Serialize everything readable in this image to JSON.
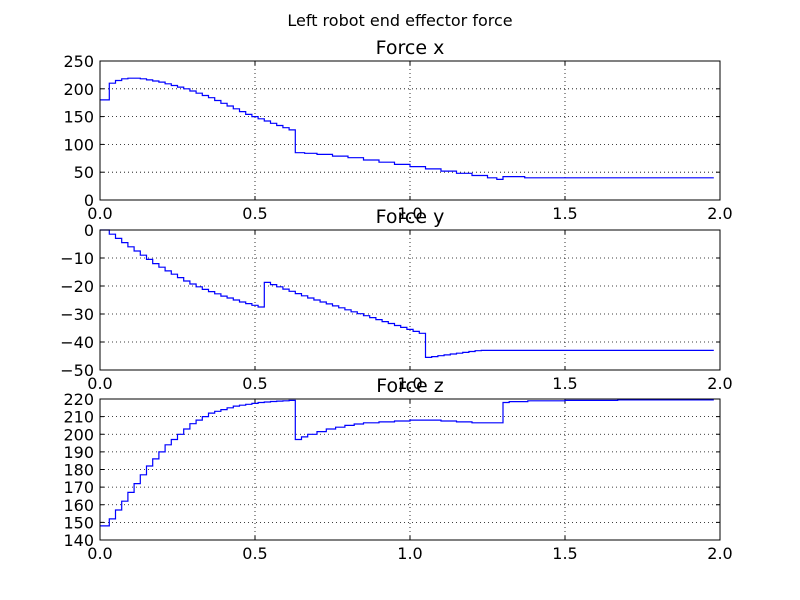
{
  "figure": {
    "suptitle": "Left robot  end effector force"
  },
  "chart_data": [
    {
      "type": "line",
      "title": "Force x",
      "xlabel": "",
      "ylabel": "",
      "xlim": [
        0.0,
        2.0
      ],
      "ylim": [
        0,
        250
      ],
      "xticks": [
        "0.0",
        "0.5",
        "1.0",
        "1.5",
        "2.0"
      ],
      "yticks": [
        "0",
        "50",
        "100",
        "150",
        "200",
        "250"
      ],
      "grid": true,
      "color": "#0000ff",
      "series": [
        {
          "x": [
            0,
            0.03,
            0.05,
            0.07,
            0.09,
            0.11,
            0.13,
            0.15,
            0.17,
            0.19,
            0.21,
            0.23,
            0.25,
            0.27,
            0.29,
            0.31,
            0.33,
            0.35,
            0.37,
            0.39,
            0.41,
            0.43,
            0.45,
            0.47,
            0.49,
            0.51,
            0.53,
            0.55,
            0.57,
            0.59,
            0.61,
            0.63,
            0.66,
            0.7,
            0.75,
            0.8,
            0.85,
            0.9,
            0.95,
            1.0,
            1.05,
            1.1,
            1.15,
            1.2,
            1.25,
            1.28,
            1.3,
            1.37,
            1.45,
            1.6,
            1.8,
            1.98
          ],
          "y": [
            180,
            210,
            215,
            218,
            219,
            219,
            218,
            216,
            214,
            212,
            209,
            206,
            203,
            200,
            196,
            192,
            188,
            184,
            179,
            174,
            169,
            164,
            159,
            154,
            150,
            146,
            142,
            138,
            134,
            130,
            126,
            85,
            84,
            82,
            79,
            76,
            72,
            68,
            64,
            60,
            56,
            52,
            48,
            44,
            40,
            37,
            42,
            40,
            40,
            40,
            40,
            40
          ]
        }
      ]
    },
    {
      "type": "line",
      "title": "Force y",
      "xlabel": "",
      "ylabel": "",
      "xlim": [
        0.0,
        2.0
      ],
      "ylim": [
        -50,
        0
      ],
      "xticks": [
        "0.0",
        "0.5",
        "1.0",
        "1.5",
        "2.0"
      ],
      "yticks": [
        "−50",
        "−40",
        "−30",
        "−20",
        "−10",
        "0"
      ],
      "grid": true,
      "color": "#0000ff",
      "series": [
        {
          "x": [
            0,
            0.03,
            0.05,
            0.07,
            0.09,
            0.11,
            0.13,
            0.15,
            0.17,
            0.19,
            0.21,
            0.23,
            0.25,
            0.27,
            0.29,
            0.31,
            0.33,
            0.35,
            0.37,
            0.39,
            0.41,
            0.43,
            0.45,
            0.47,
            0.49,
            0.51,
            0.53,
            0.55,
            0.57,
            0.59,
            0.61,
            0.63,
            0.65,
            0.67,
            0.69,
            0.71,
            0.73,
            0.75,
            0.77,
            0.79,
            0.81,
            0.83,
            0.85,
            0.87,
            0.89,
            0.91,
            0.93,
            0.95,
            0.97,
            0.99,
            1.01,
            1.03,
            1.05,
            1.07,
            1.09,
            1.11,
            1.13,
            1.15,
            1.17,
            1.19,
            1.21,
            1.23,
            1.25,
            1.27,
            1.29,
            1.31,
            1.35,
            1.4,
            1.5,
            1.67,
            1.98
          ],
          "y": [
            0,
            -1.5,
            -3,
            -4.5,
            -6,
            -7.5,
            -9,
            -10.5,
            -12,
            -13.3,
            -14.6,
            -15.8,
            -17,
            -18.2,
            -19.3,
            -20.3,
            -21.2,
            -22,
            -22.8,
            -23.6,
            -24.3,
            -25,
            -25.7,
            -26.3,
            -26.9,
            -27.5,
            -18.7,
            -19.5,
            -20.3,
            -21.1,
            -21.9,
            -22.7,
            -23.5,
            -24.3,
            -25,
            -25.7,
            -26.4,
            -27.1,
            -27.8,
            -28.5,
            -29.2,
            -29.9,
            -30.6,
            -31.3,
            -32,
            -32.7,
            -33.4,
            -34.1,
            -34.8,
            -35.5,
            -36.2,
            -36.9,
            -45.5,
            -45.2,
            -44.9,
            -44.6,
            -44.3,
            -44,
            -43.7,
            -43.4,
            -43.1,
            -43,
            -43,
            -43,
            -43,
            -43,
            -43,
            -43,
            -43,
            -43,
            -43
          ],
          "note": ""
        }
      ]
    },
    {
      "type": "line",
      "title": "Force z",
      "xlabel": "",
      "ylabel": "",
      "xlim": [
        0.0,
        2.0
      ],
      "ylim": [
        140,
        220
      ],
      "xticks": [
        "0.0",
        "0.5",
        "1.0",
        "1.5",
        "2.0"
      ],
      "yticks": [
        "140",
        "150",
        "160",
        "170",
        "180",
        "190",
        "200",
        "210",
        "220"
      ],
      "grid": true,
      "color": "#0000ff",
      "series": [
        {
          "x": [
            0,
            0.03,
            0.05,
            0.07,
            0.09,
            0.11,
            0.13,
            0.15,
            0.17,
            0.19,
            0.21,
            0.23,
            0.25,
            0.27,
            0.29,
            0.31,
            0.33,
            0.35,
            0.37,
            0.39,
            0.41,
            0.43,
            0.45,
            0.47,
            0.49,
            0.51,
            0.53,
            0.55,
            0.57,
            0.59,
            0.61,
            0.63,
            0.65,
            0.67,
            0.7,
            0.73,
            0.76,
            0.79,
            0.82,
            0.85,
            0.9,
            0.95,
            1.0,
            1.05,
            1.1,
            1.15,
            1.2,
            1.25,
            1.3,
            1.32,
            1.38,
            1.5,
            1.67,
            1.98
          ],
          "y": [
            148,
            152,
            157,
            162,
            167,
            172,
            177,
            182,
            186,
            190,
            194,
            197,
            200,
            203,
            206,
            208,
            210,
            212,
            213,
            214,
            215,
            216,
            216.5,
            217,
            217.5,
            218,
            218.3,
            218.6,
            218.8,
            219,
            219.2,
            197,
            198.5,
            200,
            201.5,
            203,
            204,
            205,
            205.8,
            206.5,
            207,
            207.5,
            208,
            208,
            207.5,
            207,
            206.5,
            206.5,
            218,
            218.5,
            219,
            219.2,
            219.5,
            219.5
          ]
        }
      ]
    }
  ]
}
